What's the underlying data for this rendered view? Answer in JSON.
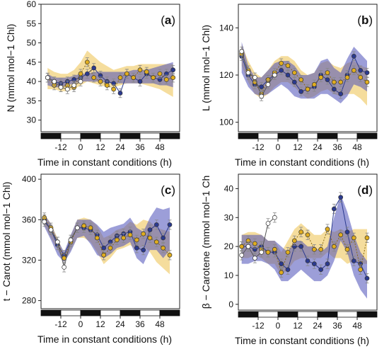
{
  "chart_data": [
    {
      "type": "line",
      "panel_label": "a",
      "ylabel": "N (mmol mol−1 Chl)",
      "xlabel": "Time in constant conditions (h)",
      "xlim": [
        -24,
        60
      ],
      "ylim": [
        27,
        60
      ],
      "yticks": [
        30,
        35,
        40,
        45,
        50,
        55,
        60
      ],
      "xticks": [
        -12,
        0,
        12,
        24,
        36,
        48
      ],
      "photoperiod_bar": [
        "dark",
        "light",
        "dark",
        "light",
        "dark",
        "light",
        "dark"
      ],
      "series": [
        {
          "color": "#2b3a8f",
          "band_color": "#4b4fb8",
          "x": [
            -20,
            -16,
            -12,
            -8,
            -4,
            0,
            4,
            8,
            12,
            16,
            20,
            24,
            28,
            32,
            36,
            40,
            44,
            48,
            52,
            56
          ],
          "y": [
            41.0,
            40.0,
            39.5,
            40.0,
            40.5,
            41.0,
            42.0,
            43.5,
            41.5,
            40.0,
            39.5,
            37.0,
            42.0,
            41.0,
            40.0,
            42.0,
            41.0,
            40.5,
            42.0,
            43.0
          ],
          "lower": [
            39,
            38.5,
            38.5,
            39,
            39.5,
            40,
            40,
            40,
            40,
            39.5,
            39.5,
            39.5,
            39.5,
            39.5,
            39.5,
            39.5,
            39.5,
            39,
            39,
            38.5
          ],
          "upper": [
            42,
            41,
            41,
            41,
            41.5,
            42,
            42,
            42.5,
            42.5,
            42.5,
            42.5,
            42.5,
            42.5,
            43,
            43,
            43,
            43.5,
            44,
            44.5,
            45
          ]
        },
        {
          "color": "#e0ad1f",
          "band_color": "#f1cf74",
          "x": [
            -20,
            -16,
            -12,
            -8,
            -4,
            0,
            4,
            8,
            12,
            16,
            20,
            24,
            28,
            32,
            36,
            40,
            44,
            48,
            52,
            56
          ],
          "y": [
            41.0,
            39.0,
            38.5,
            39.0,
            38.5,
            42.0,
            45.0,
            41.0,
            40.0,
            39.0,
            38.0,
            41.0,
            42.0,
            41.0,
            43.0,
            42.5,
            41.0,
            42.0,
            40.5,
            41.0
          ],
          "lower": [
            38,
            38,
            37.5,
            37.5,
            38,
            39,
            40,
            39.5,
            39,
            38.5,
            38.5,
            39,
            39.5,
            39.5,
            39.5,
            39,
            38.5,
            38,
            37,
            36
          ],
          "upper": [
            43.5,
            42.5,
            42,
            42,
            43,
            45,
            48,
            46.5,
            45,
            44,
            43,
            43.5,
            44,
            44,
            44.5,
            44.5,
            44.5,
            44.5,
            44.5,
            44.5
          ]
        },
        {
          "color": "#ffffff",
          "band_color": "#ffffff",
          "x": [
            -20,
            -16,
            -12,
            -8,
            -4,
            0
          ],
          "y": [
            41.0,
            40.0,
            38.5,
            38.0,
            39.0,
            40.0
          ]
        }
      ]
    },
    {
      "type": "line",
      "panel_label": "b",
      "ylabel": "L (mmol mol−1 Chl)",
      "xlabel": "Time in constant conditions (h)",
      "xlim": [
        -24,
        60
      ],
      "ylim": [
        96,
        150
      ],
      "yticks": [
        100,
        120,
        140
      ],
      "xticks": [
        -12,
        0,
        12,
        24,
        36,
        48
      ],
      "photoperiod_bar": [
        "dark",
        "light",
        "dark",
        "light",
        "dark",
        "light",
        "dark"
      ],
      "series": [
        {
          "color": "#2b3a8f",
          "band_color": "#4b4fb8",
          "x": [
            -22,
            -18,
            -14,
            -10,
            -6,
            -2,
            2,
            6,
            10,
            14,
            18,
            22,
            26,
            30,
            34,
            38,
            42,
            46,
            50,
            54
          ],
          "y": [
            128,
            120,
            116,
            115,
            118,
            120,
            122,
            120,
            117,
            113,
            114,
            115,
            120,
            118,
            114,
            112,
            120,
            128,
            122,
            121
          ],
          "lower": [
            121,
            115,
            112,
            111,
            112,
            114,
            116,
            114,
            111,
            110,
            110,
            110,
            112,
            112,
            110,
            108,
            111,
            116,
            115,
            113
          ],
          "upper": [
            134,
            124,
            119,
            119,
            122,
            125,
            126,
            126,
            124,
            120,
            120,
            121,
            126,
            127,
            123,
            121,
            127,
            132,
            129,
            126
          ]
        },
        {
          "color": "#e0ad1f",
          "band_color": "#f1cf74",
          "x": [
            -22,
            -18,
            -14,
            -10,
            -6,
            -2,
            2,
            6,
            10,
            14,
            18,
            22,
            26,
            30,
            34,
            38,
            42,
            46,
            50,
            54
          ],
          "y": [
            129,
            122,
            117,
            112,
            118,
            121,
            125,
            124,
            121,
            118,
            114,
            116,
            119,
            121,
            117,
            117,
            119,
            122,
            119,
            117
          ],
          "lower": [
            124,
            117,
            112,
            110,
            112,
            115,
            117,
            117,
            115,
            112,
            110,
            111,
            113,
            114,
            112,
            111,
            112,
            112,
            110,
            107
          ],
          "upper": [
            133,
            126,
            121,
            119,
            122,
            126,
            128,
            128,
            126,
            122,
            120,
            121,
            125,
            126,
            124,
            123,
            125,
            126,
            124,
            123
          ]
        },
        {
          "color": "#ffffff",
          "band_color": "#ffffff",
          "x": [
            -22,
            -18,
            -14,
            -10,
            -6,
            -2
          ],
          "y": [
            130,
            121,
            119,
            111,
            116,
            120
          ]
        }
      ]
    },
    {
      "type": "line",
      "panel_label": "c",
      "ylabel": "t − Carot (mmol mol−1 Chl)",
      "xlabel": "Time in constant conditions (h)",
      "xlim": [
        -24,
        60
      ],
      "ylim": [
        272,
        405
      ],
      "yticks": [
        280,
        320,
        360,
        400
      ],
      "xticks": [
        -12,
        0,
        12,
        24,
        36,
        48
      ],
      "photoperiod_bar": [
        "dark",
        "light",
        "dark",
        "light",
        "dark",
        "light",
        "dark"
      ],
      "series": [
        {
          "color": "#2b3a8f",
          "band_color": "#4b4fb8",
          "x": [
            -22,
            -18,
            -14,
            -10,
            -6,
            -2,
            2,
            6,
            10,
            14,
            18,
            22,
            26,
            30,
            34,
            38,
            42,
            46,
            50,
            54
          ],
          "y": [
            360,
            350,
            335,
            325,
            340,
            352,
            352,
            350,
            345,
            332,
            338,
            344,
            346,
            348,
            332,
            330,
            350,
            355,
            342,
            355
          ],
          "lower": [
            353,
            340,
            325,
            318,
            328,
            342,
            344,
            336,
            325,
            322,
            326,
            332,
            334,
            338,
            322,
            316,
            330,
            330,
            322,
            330
          ],
          "upper": [
            365,
            356,
            340,
            328,
            345,
            360,
            360,
            360,
            355,
            348,
            352,
            354,
            356,
            362,
            352,
            348,
            362,
            372,
            370,
            372
          ]
        },
        {
          "color": "#e0ad1f",
          "band_color": "#f1cf74",
          "x": [
            -22,
            -18,
            -14,
            -10,
            -6,
            -2,
            2,
            6,
            10,
            14,
            18,
            22,
            26,
            30,
            34,
            38,
            42,
            46,
            50,
            54
          ],
          "y": [
            362,
            352,
            338,
            322,
            338,
            352,
            354,
            352,
            342,
            325,
            332,
            340,
            342,
            345,
            340,
            346,
            342,
            338,
            332,
            325
          ],
          "lower": [
            355,
            342,
            330,
            318,
            330,
            342,
            342,
            338,
            328,
            316,
            322,
            330,
            332,
            335,
            330,
            334,
            328,
            318,
            312,
            306
          ],
          "upper": [
            366,
            356,
            342,
            326,
            344,
            360,
            362,
            360,
            354,
            342,
            345,
            350,
            352,
            358,
            355,
            360,
            358,
            352,
            350,
            348
          ]
        },
        {
          "color": "#ffffff",
          "band_color": "#ffffff",
          "x": [
            -22,
            -18,
            -14,
            -10,
            -6,
            -2
          ],
          "y": [
            358,
            350,
            338,
            313,
            340,
            352
          ]
        }
      ]
    },
    {
      "type": "line",
      "panel_label": "d",
      "ylabel": "β − Carotene (mmol mol−1 Ch",
      "xlabel": "Time in constant conditions (h)",
      "xlim": [
        -24,
        60
      ],
      "ylim": [
        -2,
        45
      ],
      "yticks": [
        0,
        10,
        20,
        30,
        40
      ],
      "xticks": [
        -12,
        0,
        12,
        24,
        36,
        48
      ],
      "photoperiod_bar": [
        "dark",
        "light",
        "dark",
        "light",
        "dark",
        "light",
        "dark"
      ],
      "series": [
        {
          "color": "#2b3a8f",
          "band_color": "#4b4fb8",
          "x": [
            -22,
            -18,
            -14,
            -10,
            -6,
            -2,
            2,
            6,
            10,
            14,
            18,
            22,
            26,
            30,
            34,
            38,
            42,
            46,
            50,
            54
          ],
          "y": [
            20,
            20,
            19,
            20,
            18,
            18,
            14,
            12,
            20,
            20,
            15,
            14,
            12,
            14,
            33,
            37,
            25,
            15,
            14,
            9
          ],
          "lower": [
            14,
            14,
            15,
            15,
            14,
            12,
            8,
            8,
            10,
            12,
            10,
            8,
            8,
            10,
            15,
            22,
            18,
            10,
            5,
            2
          ],
          "upper": [
            24,
            24,
            24,
            24,
            22,
            22,
            20,
            18,
            22,
            22,
            20,
            20,
            18,
            20,
            30,
            38,
            32,
            24,
            18,
            15
          ]
        },
        {
          "color": "#e0ad1f",
          "band_color": "#f1cf74",
          "x": [
            -22,
            -18,
            -14,
            -10,
            -6,
            -2,
            2,
            6,
            10,
            14,
            18,
            22,
            26,
            30,
            34,
            38,
            42,
            46,
            50,
            54
          ],
          "y": [
            20,
            22,
            21,
            19,
            18,
            19,
            11,
            18,
            22,
            25,
            24,
            19,
            19,
            26,
            20,
            24,
            19,
            23,
            12,
            23
          ],
          "lower": [
            16,
            16,
            17,
            16,
            14,
            14,
            10,
            12,
            15,
            16,
            16,
            16,
            16,
            18,
            16,
            16,
            14,
            15,
            14,
            14
          ],
          "upper": [
            24,
            25,
            25,
            24,
            22,
            22,
            18,
            22,
            26,
            28,
            26,
            24,
            24,
            26,
            25,
            26,
            25,
            26,
            26,
            26
          ]
        },
        {
          "color": "#ffffff",
          "band_color": "#ffffff",
          "x": [
            -22,
            -18,
            -14,
            -10,
            -6,
            -2
          ],
          "y": [
            17,
            20,
            16,
            18,
            28,
            30
          ]
        }
      ]
    }
  ]
}
